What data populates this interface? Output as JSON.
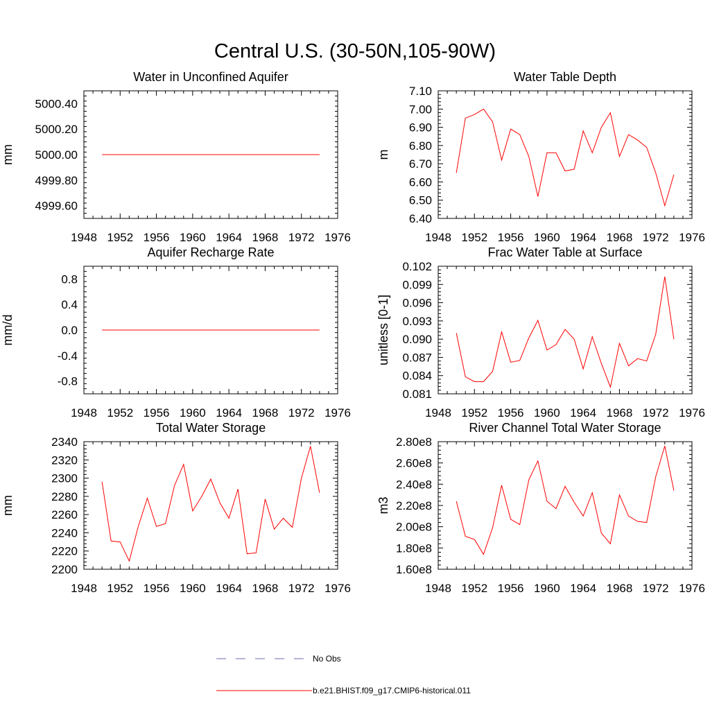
{
  "figure": {
    "title": "Central U.S. (30-50N,105-90W)"
  },
  "colors": {
    "model": "#ff0000",
    "obs": "#6b6bb0",
    "axis": "#000000"
  },
  "legend": {
    "obs_label": "No Obs",
    "model_label": "b.e21.BHIST.f09_g17.CMIP6-historical.011"
  },
  "chart_data": [
    {
      "type": "line",
      "title": "Water in Unconfined Aquifer",
      "ylabel": "mm",
      "xlim": [
        1948,
        1976
      ],
      "xticks": [
        "1948",
        "1952",
        "1956",
        "1960",
        "1964",
        "1968",
        "1972",
        "1976"
      ],
      "ylim": [
        4999.5,
        5000.5
      ],
      "yticks": [
        "4999.60",
        "4999.80",
        "5000.00",
        "5000.20",
        "5000.40"
      ],
      "x": [
        1950,
        1951,
        1952,
        1953,
        1954,
        1955,
        1956,
        1957,
        1958,
        1959,
        1960,
        1961,
        1962,
        1963,
        1964,
        1965,
        1966,
        1967,
        1968,
        1969,
        1970,
        1971,
        1972,
        1973,
        1974
      ],
      "series": [
        {
          "values": [
            5000,
            5000,
            5000,
            5000,
            5000,
            5000,
            5000,
            5000,
            5000,
            5000,
            5000,
            5000,
            5000,
            5000,
            5000,
            5000,
            5000,
            5000,
            5000,
            5000,
            5000,
            5000,
            5000,
            5000,
            5000
          ]
        }
      ]
    },
    {
      "type": "line",
      "title": "Water Table Depth",
      "ylabel": "m",
      "xlim": [
        1948,
        1976
      ],
      "xticks": [
        "1948",
        "1952",
        "1956",
        "1960",
        "1964",
        "1968",
        "1972",
        "1976"
      ],
      "ylim": [
        6.4,
        7.1
      ],
      "yticks": [
        "6.40",
        "6.50",
        "6.60",
        "6.70",
        "6.80",
        "6.90",
        "7.00",
        "7.10"
      ],
      "x": [
        1950,
        1951,
        1952,
        1953,
        1954,
        1955,
        1956,
        1957,
        1958,
        1959,
        1960,
        1961,
        1962,
        1963,
        1964,
        1965,
        1966,
        1967,
        1968,
        1969,
        1970,
        1971,
        1972,
        1973,
        1974
      ],
      "series": [
        {
          "values": [
            6.65,
            6.95,
            6.97,
            7.0,
            6.93,
            6.72,
            6.89,
            6.86,
            6.74,
            6.52,
            6.76,
            6.76,
            6.66,
            6.67,
            6.88,
            6.76,
            6.9,
            6.98,
            6.74,
            6.86,
            6.83,
            6.79,
            6.65,
            6.47,
            6.64
          ]
        }
      ]
    },
    {
      "type": "line",
      "title": "Aquifer Recharge Rate",
      "ylabel": "mm/d",
      "xlim": [
        1948,
        1976
      ],
      "xticks": [
        "1948",
        "1952",
        "1956",
        "1960",
        "1964",
        "1968",
        "1972",
        "1976"
      ],
      "ylim": [
        -1.0,
        1.0
      ],
      "yticks": [
        "-0.8",
        "-0.4",
        "0.0",
        "0.4",
        "0.8"
      ],
      "x": [
        1950,
        1951,
        1952,
        1953,
        1954,
        1955,
        1956,
        1957,
        1958,
        1959,
        1960,
        1961,
        1962,
        1963,
        1964,
        1965,
        1966,
        1967,
        1968,
        1969,
        1970,
        1971,
        1972,
        1973,
        1974
      ],
      "series": [
        {
          "values": [
            0,
            0,
            0,
            0,
            0,
            0,
            0,
            0,
            0,
            0,
            0,
            0,
            0,
            0,
            0,
            0,
            0,
            0,
            0,
            0,
            0,
            0,
            0,
            0,
            0
          ]
        }
      ]
    },
    {
      "type": "line",
      "title": "Frac Water Table at Surface",
      "ylabel": "unitless [0-1]",
      "xlim": [
        1948,
        1976
      ],
      "xticks": [
        "1948",
        "1952",
        "1956",
        "1960",
        "1964",
        "1968",
        "1972",
        "1976"
      ],
      "ylim": [
        0.081,
        0.102
      ],
      "yticks": [
        "0.081",
        "0.084",
        "0.087",
        "0.090",
        "0.093",
        "0.096",
        "0.099",
        "0.102"
      ],
      "x": [
        1950,
        1951,
        1952,
        1953,
        1954,
        1955,
        1956,
        1957,
        1958,
        1959,
        1960,
        1961,
        1962,
        1963,
        1964,
        1965,
        1966,
        1967,
        1968,
        1969,
        1970,
        1971,
        1972,
        1973,
        1974
      ],
      "series": [
        {
          "values": [
            0.091,
            0.0838,
            0.083,
            0.083,
            0.0847,
            0.0912,
            0.0862,
            0.0865,
            0.0902,
            0.0931,
            0.0882,
            0.0891,
            0.0916,
            0.09,
            0.0851,
            0.0904,
            0.086,
            0.0821,
            0.0893,
            0.0856,
            0.0868,
            0.0864,
            0.0908,
            0.1003,
            0.09
          ]
        }
      ]
    },
    {
      "type": "line",
      "title": "Total Water Storage",
      "ylabel": "mm",
      "xlim": [
        1948,
        1976
      ],
      "xticks": [
        "1948",
        "1952",
        "1956",
        "1960",
        "1964",
        "1968",
        "1972",
        "1976"
      ],
      "ylim": [
        2200,
        2340
      ],
      "yticks": [
        "2200",
        "2220",
        "2240",
        "2260",
        "2280",
        "2300",
        "2320",
        "2340"
      ],
      "x": [
        1950,
        1951,
        1952,
        1953,
        1954,
        1955,
        1956,
        1957,
        1958,
        1959,
        1960,
        1961,
        1962,
        1963,
        1964,
        1965,
        1966,
        1967,
        1968,
        1969,
        1970,
        1971,
        1972,
        1973,
        1974
      ],
      "series": [
        {
          "values": [
            2296,
            2231,
            2230,
            2209,
            2247,
            2278,
            2247,
            2250,
            2292,
            2315,
            2264,
            2280,
            2299,
            2273,
            2256,
            2288,
            2217,
            2218,
            2277,
            2244,
            2256,
            2246,
            2300,
            2335,
            2284
          ]
        }
      ]
    },
    {
      "type": "line",
      "title": "River Channel Total Water Storage",
      "ylabel": "m3",
      "xlim": [
        1948,
        1976
      ],
      "xticks": [
        "1948",
        "1952",
        "1956",
        "1960",
        "1964",
        "1968",
        "1972",
        "1976"
      ],
      "ylim": [
        160000000.0,
        280000000.0
      ],
      "yticks": [
        "1.60e8",
        "1.80e8",
        "2.00e8",
        "2.20e8",
        "2.40e8",
        "2.60e8",
        "2.80e8"
      ],
      "x": [
        1950,
        1951,
        1952,
        1953,
        1954,
        1955,
        1956,
        1957,
        1958,
        1959,
        1960,
        1961,
        1962,
        1963,
        1964,
        1965,
        1966,
        1967,
        1968,
        1969,
        1970,
        1971,
        1972,
        1973,
        1974
      ],
      "series": [
        {
          "values": [
            224000000.0,
            191000000.0,
            188000000.0,
            174000000.0,
            199000000.0,
            239000000.0,
            207000000.0,
            202000000.0,
            244000000.0,
            262000000.0,
            224000000.0,
            217000000.0,
            238000000.0,
            223000000.0,
            210000000.0,
            232000000.0,
            194000000.0,
            184000000.0,
            230000000.0,
            210000000.0,
            205000000.0,
            204000000.0,
            247000000.0,
            276000000.0,
            234000000.0
          ]
        }
      ]
    }
  ]
}
